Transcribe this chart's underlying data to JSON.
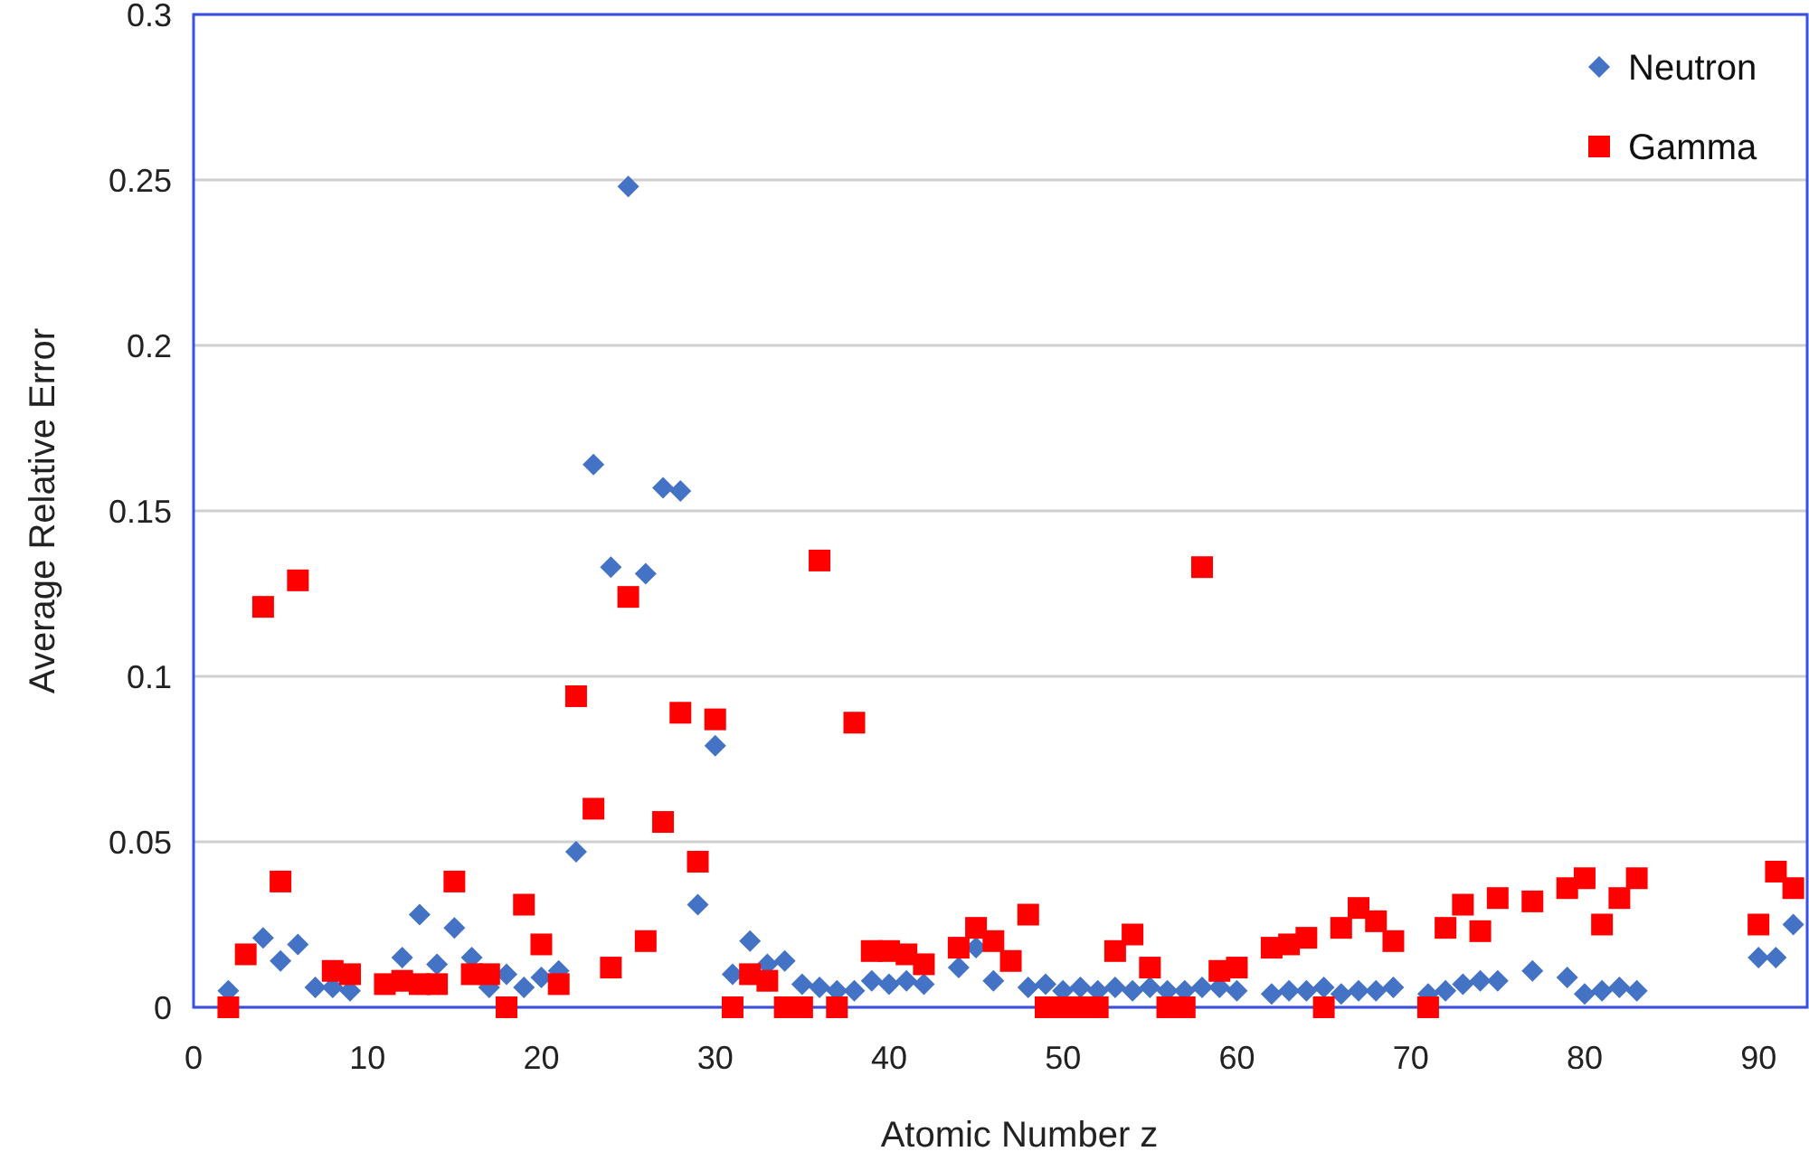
{
  "chart_data": {
    "type": "scatter",
    "xlabel": "Atomic Number z",
    "ylabel": "Average Relative Error",
    "xlim": [
      0,
      92.8
    ],
    "xticks": [
      0,
      10,
      20,
      30,
      40,
      50,
      60,
      70,
      80,
      90
    ],
    "ylim": [
      0,
      0.3
    ],
    "yticks": [
      0,
      0.05,
      0.1,
      0.15,
      0.2,
      0.25,
      0.3
    ],
    "grid": "y",
    "legend": "top right",
    "series": [
      {
        "name": "Neutron",
        "color": "#4472c4",
        "marker": "diamond",
        "x": [
          2,
          4,
          5,
          6,
          7,
          8,
          9,
          12,
          13,
          14,
          15,
          16,
          17,
          18,
          19,
          20,
          21,
          22,
          23,
          24,
          25,
          26,
          27,
          28,
          29,
          30,
          31,
          32,
          33,
          34,
          35,
          36,
          37,
          38,
          39,
          40,
          41,
          42,
          44,
          45,
          46,
          48,
          49,
          50,
          51,
          52,
          53,
          54,
          55,
          56,
          57,
          58,
          59,
          60,
          62,
          63,
          64,
          65,
          66,
          67,
          68,
          69,
          71,
          72,
          73,
          74,
          75,
          77,
          79,
          80,
          81,
          82,
          83,
          90,
          91,
          92
        ],
        "values": [
          0.005,
          0.021,
          0.014,
          0.019,
          0.006,
          0.006,
          0.005,
          0.015,
          0.028,
          0.013,
          0.024,
          0.015,
          0.006,
          0.01,
          0.006,
          0.009,
          0.011,
          0.047,
          0.164,
          0.133,
          0.248,
          0.131,
          0.157,
          0.156,
          0.031,
          0.079,
          0.01,
          0.02,
          0.013,
          0.014,
          0.007,
          0.006,
          0.005,
          0.005,
          0.008,
          0.007,
          0.008,
          0.007,
          0.012,
          0.018,
          0.008,
          0.006,
          0.007,
          0.005,
          0.006,
          0.005,
          0.006,
          0.005,
          0.006,
          0.005,
          0.005,
          0.006,
          0.006,
          0.005,
          0.004,
          0.005,
          0.005,
          0.006,
          0.004,
          0.005,
          0.005,
          0.006,
          0.004,
          0.005,
          0.007,
          0.008,
          0.008,
          0.011,
          0.009,
          0.004,
          0.005,
          0.006,
          0.005,
          0.015,
          0.015,
          0.025
        ]
      },
      {
        "name": "Gamma",
        "color": "#ff0000",
        "marker": "square",
        "x": [
          2,
          3,
          4,
          5,
          6,
          8,
          9,
          11,
          12,
          13,
          14,
          15,
          16,
          17,
          18,
          19,
          20,
          21,
          22,
          23,
          24,
          25,
          26,
          27,
          28,
          29,
          30,
          31,
          32,
          33,
          34,
          35,
          36,
          37,
          38,
          39,
          40,
          41,
          42,
          44,
          45,
          46,
          47,
          48,
          49,
          50,
          51,
          52,
          53,
          54,
          55,
          56,
          57,
          58,
          59,
          60,
          62,
          63,
          64,
          65,
          66,
          67,
          68,
          69,
          71,
          72,
          73,
          74,
          75,
          77,
          79,
          80,
          81,
          82,
          83,
          90,
          91,
          92
        ],
        "values": [
          0,
          0.016,
          0.121,
          0.038,
          0.129,
          0.011,
          0.01,
          0.007,
          0.008,
          0.007,
          0.007,
          0.038,
          0.01,
          0.01,
          0,
          0.031,
          0.019,
          0.007,
          0.094,
          0.06,
          0.012,
          0.124,
          0.02,
          0.056,
          0.089,
          0.044,
          0.087,
          0,
          0.01,
          0.008,
          0,
          0,
          0.135,
          0,
          0.086,
          0.017,
          0.017,
          0.016,
          0.013,
          0.018,
          0.024,
          0.02,
          0.014,
          0.028,
          0,
          0,
          0,
          0,
          0.017,
          0.022,
          0.012,
          0,
          0,
          0.133,
          0.011,
          0.012,
          0.018,
          0.019,
          0.021,
          0,
          0.024,
          0.03,
          0.026,
          0.02,
          0,
          0.024,
          0.031,
          0.023,
          0.033,
          0.032,
          0.036,
          0.039,
          0.025,
          0.033,
          0.039,
          0.025,
          0.041,
          0.036
        ]
      }
    ]
  }
}
